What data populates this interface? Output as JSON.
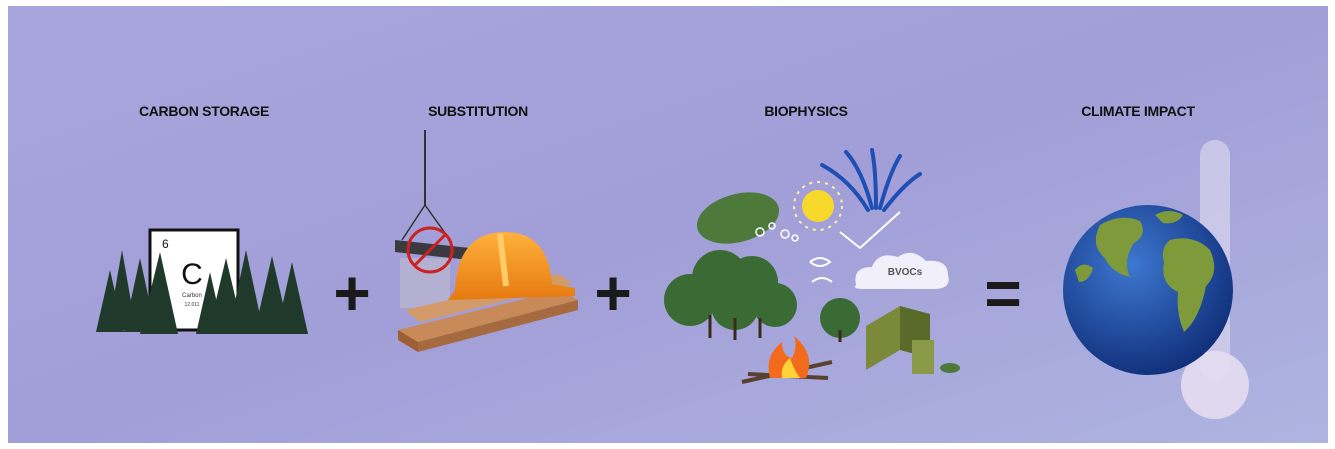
{
  "panels": [
    {
      "title": "CARBON STORAGE",
      "element": {
        "number": "6",
        "symbol": "C",
        "name": "Carbon",
        "mass": "12.011"
      }
    },
    {
      "title": "SUBSTITUTION"
    },
    {
      "title": "BIOPHYSICS",
      "label": "BVOCs"
    },
    {
      "title": "CLIMATE IMPACT"
    }
  ],
  "operators": [
    "+",
    "+",
    "="
  ]
}
